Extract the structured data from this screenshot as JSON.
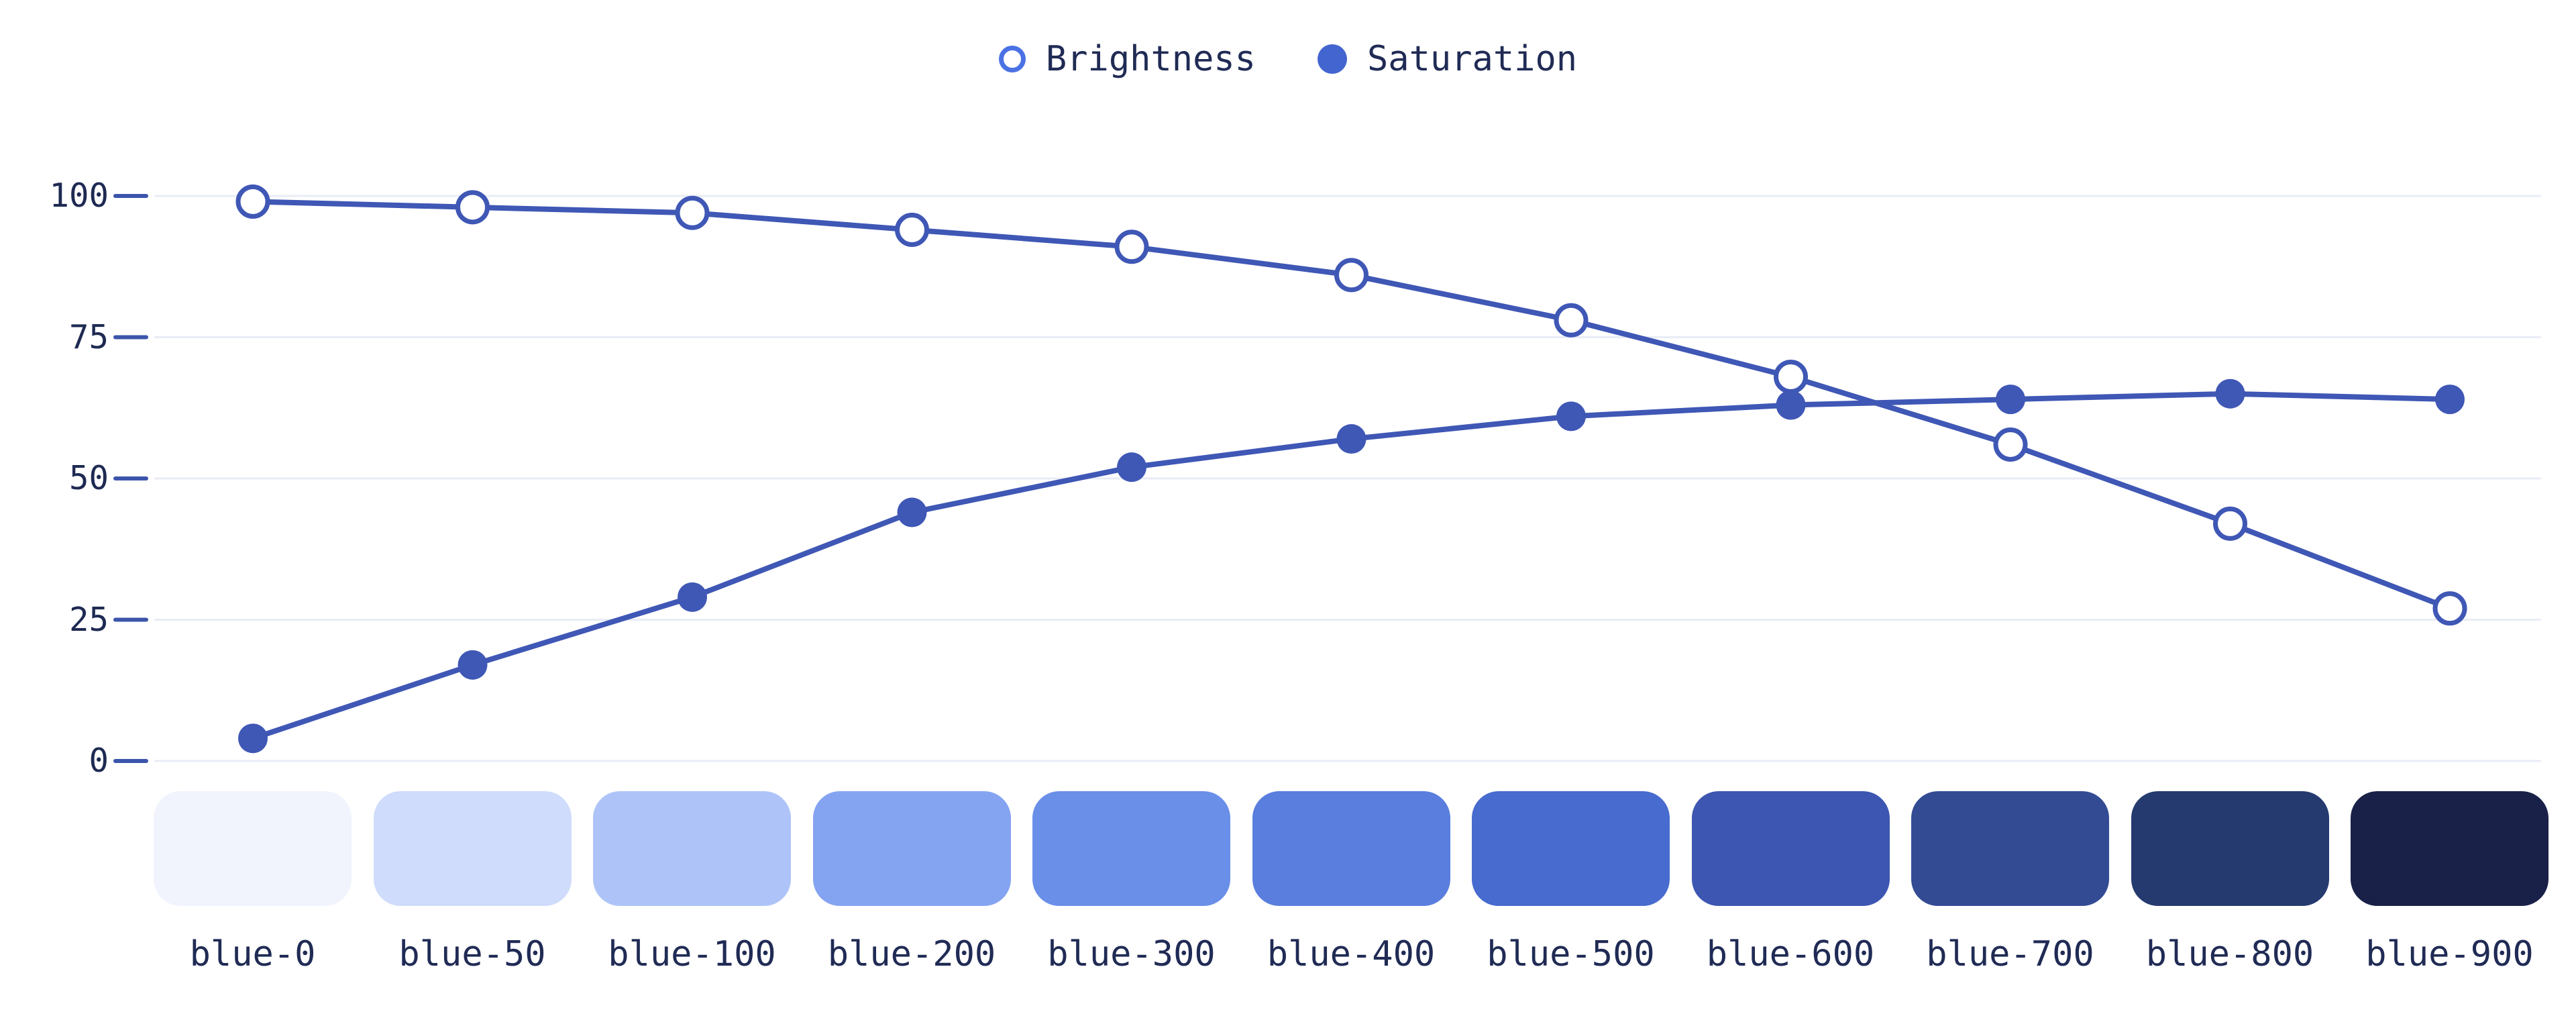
{
  "page": {
    "background": "#ffffff"
  },
  "legend": {
    "items": [
      {
        "label": "Brightness",
        "marker": "open-circle",
        "marker_color": "#4b72e4"
      },
      {
        "label": "Saturation",
        "marker": "filled-circle",
        "marker_color": "#4365d0"
      }
    ]
  },
  "chart_data": {
    "type": "line",
    "title": "",
    "xlabel": "",
    "ylabel": "",
    "categories": [
      "blue-0",
      "blue-50",
      "blue-100",
      "blue-200",
      "blue-300",
      "blue-400",
      "blue-500",
      "blue-600",
      "blue-700",
      "blue-800",
      "blue-900"
    ],
    "series": [
      {
        "name": "Brightness",
        "marker": "open",
        "values": [
          99,
          98,
          97,
          94,
          91,
          86,
          78,
          68,
          56,
          42,
          27
        ]
      },
      {
        "name": "Saturation",
        "marker": "filled",
        "values": [
          4,
          17,
          29,
          44,
          52,
          57,
          61,
          63,
          64,
          65,
          64
        ]
      }
    ],
    "ylim": [
      0,
      100
    ],
    "yticks": [
      100,
      75,
      50,
      25,
      0
    ],
    "grid": true,
    "legend_position": "top-center",
    "line_color": "#3f57b5"
  },
  "swatches": [
    {
      "label": "blue-0",
      "color": "#f1f4fd"
    },
    {
      "label": "blue-50",
      "color": "#cfdcfb"
    },
    {
      "label": "blue-100",
      "color": "#aec4f8"
    },
    {
      "label": "blue-200",
      "color": "#84a4f2"
    },
    {
      "label": "blue-300",
      "color": "#6a8fe9"
    },
    {
      "label": "blue-400",
      "color": "#597ede"
    },
    {
      "label": "blue-500",
      "color": "#476bce"
    },
    {
      "label": "blue-600",
      "color": "#3d56b1"
    },
    {
      "label": "blue-700",
      "color": "#334b93"
    },
    {
      "label": "blue-800",
      "color": "#253a6f"
    },
    {
      "label": "blue-900",
      "color": "#192148"
    }
  ],
  "colors": {
    "series_line": "#3f57b5",
    "marker_fill": "#3f57b5",
    "open_marker_fill": "#ffffff",
    "gridline": "#e9ecf5",
    "tick_dash": "#3c55ab",
    "axis_text": "#1e2a52",
    "label_text": "#202b55",
    "background": "#ffffff"
  }
}
